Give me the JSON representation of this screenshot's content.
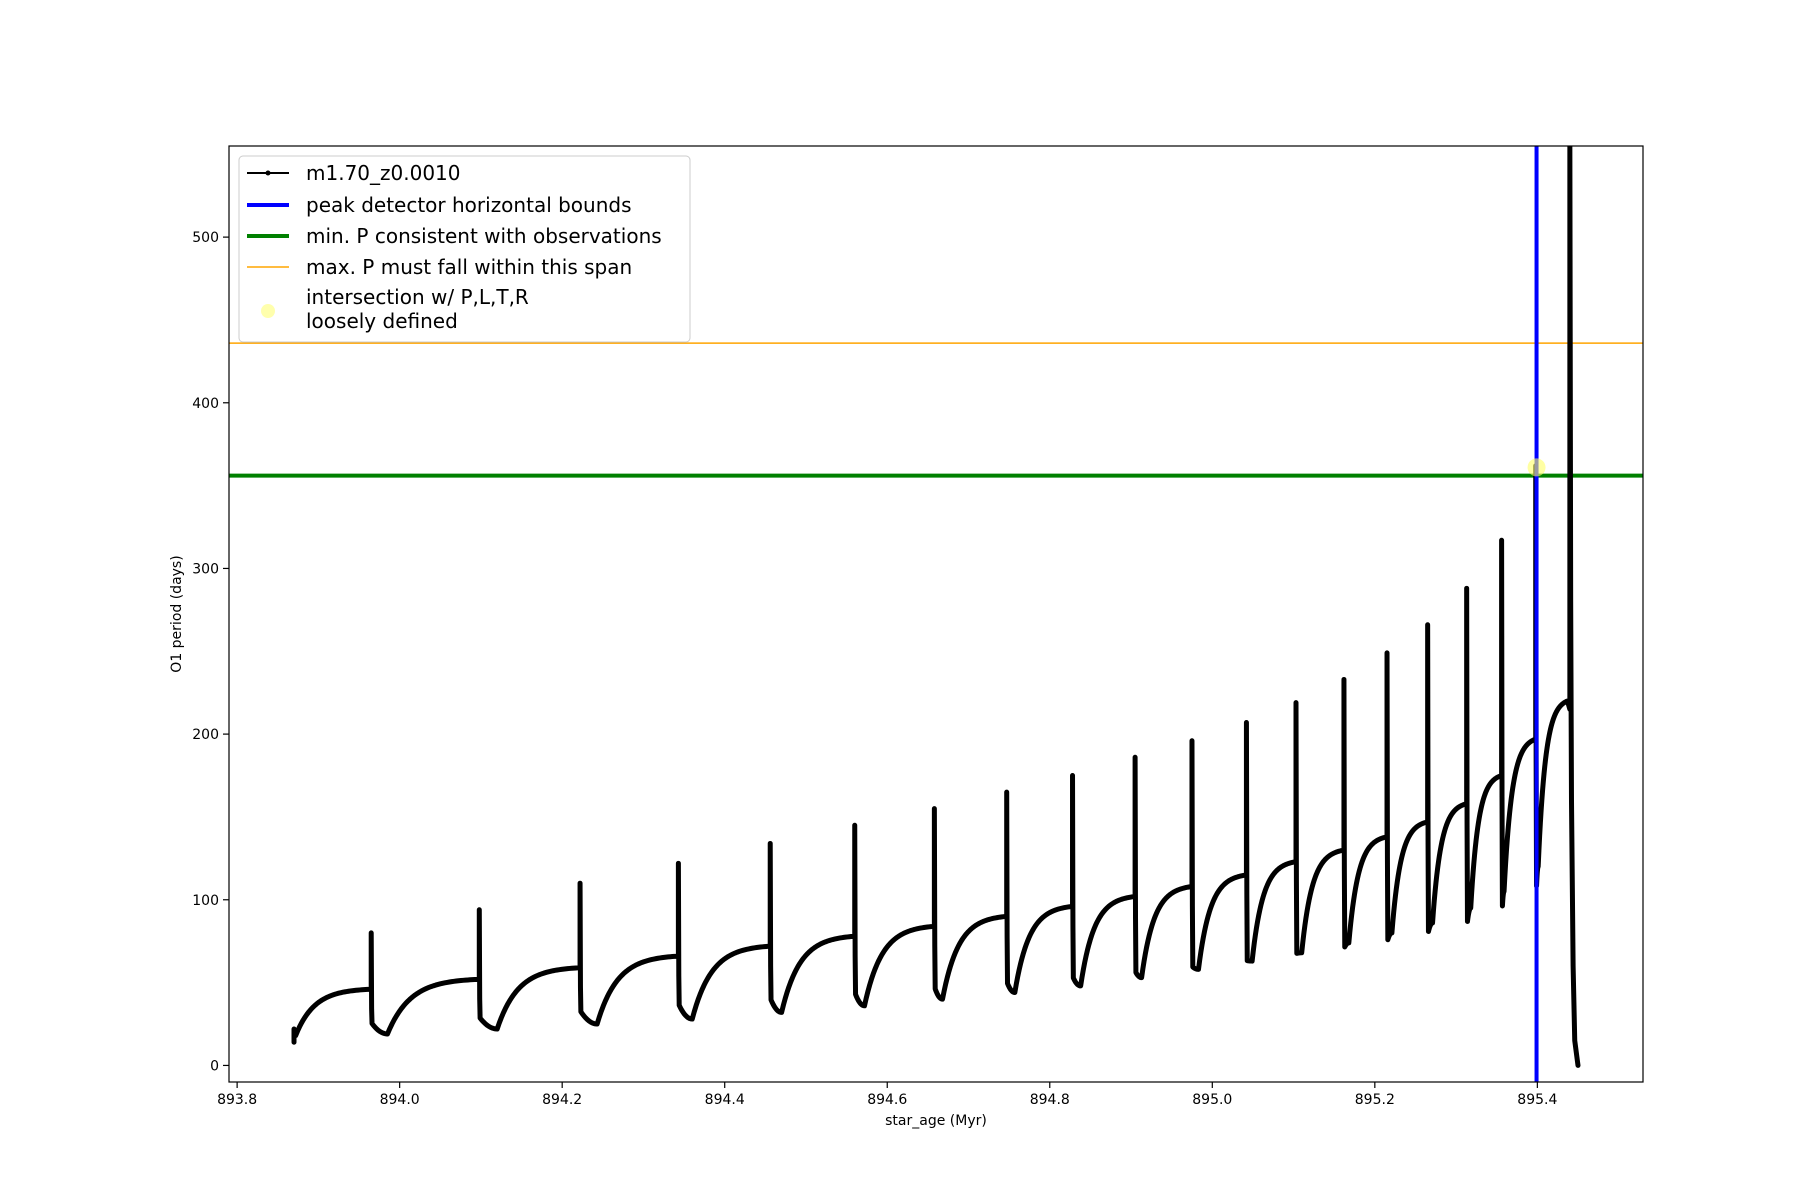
{
  "chart_data": {
    "type": "line",
    "xlabel": "star_age (Myr)",
    "ylabel": "O1 period (days)",
    "xlim": [
      893.79,
      895.53
    ],
    "ylim": [
      -10,
      555
    ],
    "xticks": [
      893.8,
      894.0,
      894.2,
      894.4,
      894.6,
      894.8,
      895.0,
      895.2,
      895.4
    ],
    "xtick_labels": [
      "893.8",
      "894.0",
      "894.2",
      "894.4",
      "894.6",
      "894.8",
      "895.0",
      "895.2",
      "895.4"
    ],
    "yticks": [
      0,
      100,
      200,
      300,
      400,
      500
    ],
    "ytick_labels": [
      "0",
      "100",
      "200",
      "300",
      "400",
      "500"
    ],
    "grid": false,
    "legend_position": "upper-left",
    "legend": [
      {
        "label": "m1.70_z0.0010",
        "color": "#000000",
        "style": "line-marker"
      },
      {
        "label": "peak detector horizontal bounds",
        "color": "#0000ff",
        "style": "thick-line"
      },
      {
        "label": "min. P consistent with observations",
        "color": "#008000",
        "style": "thick-line"
      },
      {
        "label": "max. P must fall within this span",
        "color": "#ffa500",
        "style": "thin-line"
      },
      {
        "label_lines": [
          "intersection w/ P,L,T,R",
          "loosely defined"
        ],
        "color": "#ffff99",
        "style": "marker"
      }
    ],
    "series": [
      {
        "name": "m1.70_z0.0010",
        "color": "#000000",
        "x_start": 893.87,
        "min_start": 18,
        "pulses": [
          {
            "x": 893.965,
            "max_before": 46,
            "spike": 80,
            "dip_x": 893.985,
            "dip": 19
          },
          {
            "x": 894.098,
            "max_before": 52,
            "spike": 94,
            "dip_x": 894.12,
            "dip": 22
          },
          {
            "x": 894.222,
            "max_before": 59,
            "spike": 110,
            "dip_x": 894.243,
            "dip": 25
          },
          {
            "x": 894.343,
            "max_before": 66,
            "spike": 122,
            "dip_x": 894.36,
            "dip": 28
          },
          {
            "x": 894.456,
            "max_before": 72,
            "spike": 134,
            "dip_x": 894.47,
            "dip": 32
          },
          {
            "x": 894.56,
            "max_before": 78,
            "spike": 145,
            "dip_x": 894.572,
            "dip": 36
          },
          {
            "x": 894.658,
            "max_before": 84,
            "spike": 155,
            "dip_x": 894.668,
            "dip": 40
          },
          {
            "x": 894.747,
            "max_before": 90,
            "spike": 165,
            "dip_x": 894.757,
            "dip": 44
          },
          {
            "x": 894.828,
            "max_before": 96,
            "spike": 175,
            "dip_x": 894.838,
            "dip": 48
          },
          {
            "x": 894.905,
            "max_before": 102,
            "spike": 186,
            "dip_x": 894.913,
            "dip": 53
          },
          {
            "x": 894.975,
            "max_before": 108,
            "spike": 196,
            "dip_x": 894.983,
            "dip": 58
          },
          {
            "x": 895.042,
            "max_before": 115,
            "spike": 207,
            "dip_x": 895.049,
            "dip": 63
          },
          {
            "x": 895.103,
            "max_before": 123,
            "spike": 219,
            "dip_x": 895.11,
            "dip": 68
          },
          {
            "x": 895.162,
            "max_before": 130,
            "spike": 233,
            "dip_x": 895.168,
            "dip": 74
          },
          {
            "x": 895.215,
            "max_before": 138,
            "spike": 249,
            "dip_x": 895.221,
            "dip": 80
          },
          {
            "x": 895.265,
            "max_before": 147,
            "spike": 266,
            "dip_x": 895.271,
            "dip": 86
          },
          {
            "x": 895.313,
            "max_before": 158,
            "spike": 288,
            "dip_x": 895.318,
            "dip": 95
          },
          {
            "x": 895.356,
            "max_before": 175,
            "spike": 317,
            "dip_x": 895.359,
            "dip": 105
          },
          {
            "x": 895.398,
            "max_before": 197,
            "spike": 362,
            "dip_x": 895.401,
            "dip": 120
          }
        ],
        "final_pulse": {
          "x": 895.44,
          "max_before": 220,
          "spike": 555,
          "end_x": 895.45,
          "end": 0
        }
      }
    ],
    "hlines": [
      {
        "y": 356,
        "color": "#008000",
        "width": 4,
        "label": "min. P consistent with observations"
      },
      {
        "y": 436,
        "color": "#ffa500",
        "width": 1.5,
        "label": "max. P must fall within this span"
      }
    ],
    "vlines": [
      {
        "x": 895.399,
        "color": "#0000ff",
        "width": 4,
        "label": "peak detector horizontal bounds"
      }
    ],
    "intersection_point": {
      "x": 895.399,
      "y": 361,
      "color": "#ffff66"
    }
  }
}
